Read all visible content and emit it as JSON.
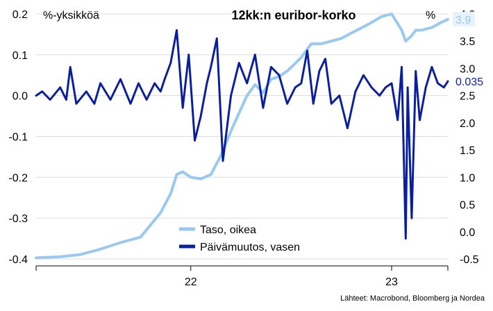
{
  "chart_data": {
    "type": "line",
    "title": "12kk:n euribor-korko",
    "left_axis_unit": "%-yksikköä",
    "right_axis_unit": "%",
    "left_ticks": [
      "0.2",
      "0.1",
      "0.0",
      "-0.1",
      "-0.2",
      "-0.3",
      "-0.4"
    ],
    "left_tick_values": [
      0.2,
      0.1,
      0.0,
      -0.1,
      -0.2,
      -0.3,
      -0.4
    ],
    "right_ticks": [
      "4.0",
      "3.5",
      "3.0",
      "2.5",
      "2.0",
      "1.5",
      "1.0",
      "0.5",
      "0.0",
      "-0.5"
    ],
    "right_tick_values": [
      4.0,
      3.5,
      3.0,
      2.5,
      2.0,
      1.5,
      1.0,
      0.5,
      0.0,
      -0.5
    ],
    "x_ticks": [
      "22",
      "23"
    ],
    "x_tick_positions": [
      2022.0,
      2023.0
    ],
    "xlim": [
      2021.23,
      2023.28
    ],
    "left_ylim": [
      -0.4,
      0.2
    ],
    "right_ylim": [
      -0.5,
      4.0
    ],
    "grid": "horizontal",
    "series": [
      {
        "name": "Taso, oikea",
        "axis": "right",
        "color": "#99c9f2",
        "last_value_label": "3.9",
        "x": [
          2021.23,
          2021.35,
          2021.45,
          2021.55,
          2021.65,
          2021.75,
          2021.85,
          2021.9,
          2021.93,
          2021.96,
          2022.0,
          2022.05,
          2022.1,
          2022.15,
          2022.2,
          2022.28,
          2022.32,
          2022.36,
          2022.4,
          2022.44,
          2022.48,
          2022.55,
          2022.6,
          2022.65,
          2022.7,
          2022.75,
          2022.8,
          2022.88,
          2022.95,
          2023.0,
          2023.05,
          2023.07,
          2023.1,
          2023.12,
          2023.15,
          2023.2,
          2023.25,
          2023.28
        ],
        "y": [
          -0.48,
          -0.46,
          -0.42,
          -0.32,
          -0.2,
          -0.1,
          0.35,
          0.7,
          1.05,
          1.1,
          1.0,
          0.97,
          1.05,
          1.4,
          1.85,
          2.5,
          2.7,
          2.55,
          2.8,
          2.85,
          2.95,
          3.2,
          3.45,
          3.45,
          3.5,
          3.55,
          3.65,
          3.8,
          3.95,
          4.0,
          3.7,
          3.5,
          3.6,
          3.7,
          3.7,
          3.75,
          3.85,
          3.9
        ]
      },
      {
        "name": "Päivämuutos, vasen",
        "axis": "left",
        "color": "#0a1fa0",
        "last_value_label": "0.035",
        "x": [
          2021.23,
          2021.26,
          2021.3,
          2021.35,
          2021.38,
          2021.4,
          2021.43,
          2021.48,
          2021.52,
          2021.55,
          2021.6,
          2021.65,
          2021.7,
          2021.74,
          2021.78,
          2021.82,
          2021.85,
          2021.87,
          2021.9,
          2021.93,
          2021.96,
          2021.99,
          2022.02,
          2022.05,
          2022.08,
          2022.1,
          2022.13,
          2022.16,
          2022.2,
          2022.24,
          2022.28,
          2022.32,
          2022.36,
          2022.4,
          2022.44,
          2022.48,
          2022.52,
          2022.55,
          2022.58,
          2022.61,
          2022.64,
          2022.67,
          2022.7,
          2022.74,
          2022.78,
          2022.82,
          2022.86,
          2022.9,
          2022.94,
          2022.97,
          2023.0,
          2023.03,
          2023.05,
          2023.07,
          2023.08,
          2023.1,
          2023.12,
          2023.14,
          2023.17,
          2023.2,
          2023.23,
          2023.26,
          2023.28
        ],
        "y": [
          0.0,
          0.01,
          -0.01,
          0.02,
          -0.01,
          0.07,
          -0.02,
          0.01,
          -0.02,
          0.03,
          -0.01,
          0.04,
          -0.02,
          0.03,
          -0.01,
          0.03,
          0.01,
          0.04,
          0.08,
          0.16,
          -0.03,
          0.1,
          -0.11,
          -0.05,
          0.03,
          0.07,
          0.14,
          -0.16,
          0.0,
          0.08,
          0.03,
          0.1,
          -0.03,
          0.07,
          0.05,
          -0.02,
          0.02,
          0.03,
          0.11,
          -0.02,
          0.06,
          0.09,
          -0.02,
          0.0,
          -0.08,
          0.01,
          0.05,
          0.02,
          0.0,
          0.02,
          0.03,
          -0.06,
          0.07,
          -0.35,
          0.02,
          -0.3,
          0.06,
          -0.06,
          0.02,
          0.07,
          0.03,
          0.02,
          0.035
        ]
      }
    ],
    "legend_position": "bottom-center",
    "source": "Lähteet: Macrobond, Bloomberg ja Nordea"
  }
}
